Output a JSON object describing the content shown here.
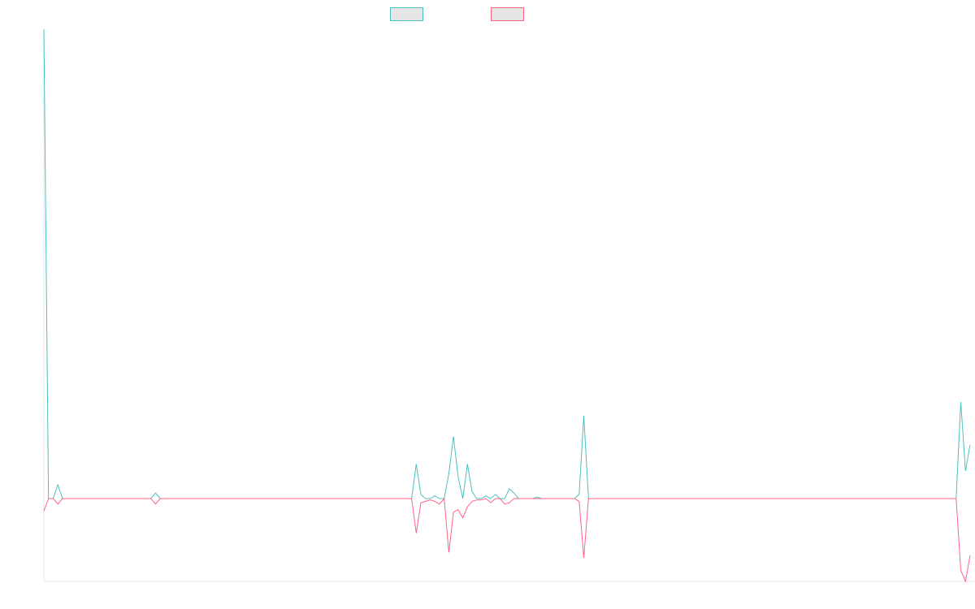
{
  "chart_data": {
    "type": "line",
    "title": "",
    "xlabel": "",
    "ylabel": "",
    "grid": false,
    "legend_position": "top-center",
    "x_count": 200,
    "ylim": [
      -6,
      34
    ],
    "colors": {
      "series_a": "#4bc0c0",
      "series_b": "#ff6384",
      "legend_box_fill": "#e6e6e6",
      "axis": "#e5e5e5"
    },
    "series": [
      {
        "key": "a",
        "name": "",
        "points": [
          [
            0,
            34
          ],
          [
            1,
            0
          ],
          [
            2,
            0
          ],
          [
            3,
            1
          ],
          [
            4,
            0
          ],
          [
            23,
            0
          ],
          [
            24,
            0.4
          ],
          [
            25,
            0
          ],
          [
            79,
            0
          ],
          [
            80,
            2.5
          ],
          [
            81,
            0.3
          ],
          [
            82,
            0
          ],
          [
            83,
            0
          ],
          [
            84,
            0.2
          ],
          [
            85,
            0
          ],
          [
            86,
            0
          ],
          [
            87,
            1.8
          ],
          [
            88,
            4.5
          ],
          [
            89,
            1.6
          ],
          [
            90,
            0
          ],
          [
            91,
            2.5
          ],
          [
            92,
            0.5
          ],
          [
            93,
            0
          ],
          [
            94,
            0
          ],
          [
            95,
            0.2
          ],
          [
            96,
            0
          ],
          [
            97,
            0.3
          ],
          [
            98,
            0
          ],
          [
            99,
            0
          ],
          [
            100,
            0.7
          ],
          [
            101,
            0.4
          ],
          [
            102,
            0
          ],
          [
            103,
            0
          ],
          [
            104,
            0
          ],
          [
            105,
            0
          ],
          [
            106,
            0.1
          ],
          [
            107,
            0
          ],
          [
            114,
            0
          ],
          [
            115,
            0.3
          ],
          [
            116,
            6
          ],
          [
            117,
            0
          ],
          [
            196,
            0
          ],
          [
            197,
            7
          ],
          [
            198,
            2
          ],
          [
            199,
            3.9
          ]
        ]
      },
      {
        "key": "b",
        "name": "",
        "points": [
          [
            0,
            -0.9
          ],
          [
            1,
            0
          ],
          [
            2,
            0
          ],
          [
            3,
            -0.4
          ],
          [
            4,
            0
          ],
          [
            23,
            0
          ],
          [
            24,
            -0.4
          ],
          [
            25,
            0
          ],
          [
            79,
            0
          ],
          [
            80,
            -2.5
          ],
          [
            81,
            -0.3
          ],
          [
            82,
            -0.2
          ],
          [
            83,
            -0.1
          ],
          [
            84,
            -0.2
          ],
          [
            85,
            -0.4
          ],
          [
            86,
            0
          ],
          [
            87,
            -3.9
          ],
          [
            88,
            -1
          ],
          [
            89,
            -0.8
          ],
          [
            90,
            -1.4
          ],
          [
            91,
            -0.6
          ],
          [
            92,
            -0.2
          ],
          [
            93,
            -0.1
          ],
          [
            94,
            -0.1
          ],
          [
            95,
            0
          ],
          [
            96,
            -0.3
          ],
          [
            97,
            0
          ],
          [
            98,
            0
          ],
          [
            99,
            -0.4
          ],
          [
            100,
            -0.3
          ],
          [
            101,
            0
          ],
          [
            102,
            0
          ],
          [
            103,
            0
          ],
          [
            107,
            0
          ],
          [
            114,
            0
          ],
          [
            115,
            -0.2
          ],
          [
            116,
            -4.3
          ],
          [
            117,
            0
          ],
          [
            196,
            0
          ],
          [
            197,
            -5.2
          ],
          [
            198,
            -6
          ],
          [
            199,
            -4.1
          ]
        ]
      }
    ]
  }
}
